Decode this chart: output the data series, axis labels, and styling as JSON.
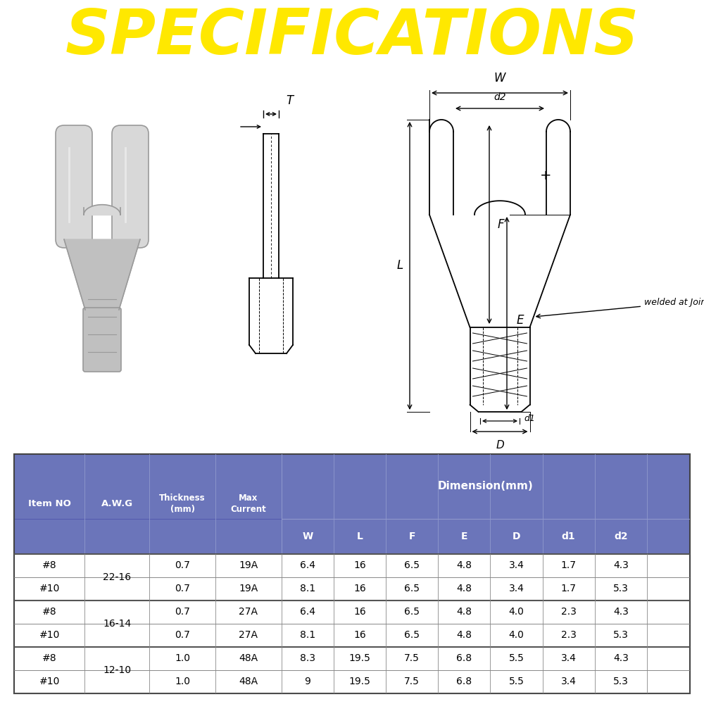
{
  "title": "SPECIFICATIONS",
  "title_color": "#FFE800",
  "header_bg": "#6B75BA",
  "table_header_bg": "#6B75BA",
  "table_header_color": "#FFFFFF",
  "outer_bg": "#FFFFFF",
  "gray_line": "#888888",
  "black": "#000000",
  "rows": [
    {
      "item": "#8",
      "awg": "22-16",
      "thick": "0.7",
      "curr": "19A",
      "W": "6.4",
      "L": "16",
      "F": "6.5",
      "E": "4.8",
      "D": "3.4",
      "d1": "1.7",
      "d2": "4.3"
    },
    {
      "item": "#10",
      "awg": "22-16",
      "thick": "0.7",
      "curr": "19A",
      "W": "8.1",
      "L": "16",
      "F": "6.5",
      "E": "4.8",
      "D": "3.4",
      "d1": "1.7",
      "d2": "5.3"
    },
    {
      "item": "#8",
      "awg": "16-14",
      "thick": "0.7",
      "curr": "27A",
      "W": "6.4",
      "L": "16",
      "F": "6.5",
      "E": "4.8",
      "D": "4.0",
      "d1": "2.3",
      "d2": "4.3"
    },
    {
      "item": "#10",
      "awg": "16-14",
      "thick": "0.7",
      "curr": "27A",
      "W": "8.1",
      "L": "16",
      "F": "6.5",
      "E": "4.8",
      "D": "4.0",
      "d1": "2.3",
      "d2": "5.3"
    },
    {
      "item": "#8",
      "awg": "12-10",
      "thick": "1.0",
      "curr": "48A",
      "W": "8.3",
      "L": "19.5",
      "F": "7.5",
      "E": "6.8",
      "D": "5.5",
      "d1": "3.4",
      "d2": "4.3"
    },
    {
      "item": "#10",
      "awg": "12-10",
      "thick": "1.0",
      "curr": "48A",
      "W": "9",
      "L": "19.5",
      "F": "7.5",
      "E": "6.8",
      "D": "5.5",
      "d1": "3.4",
      "d2": "5.3"
    }
  ]
}
